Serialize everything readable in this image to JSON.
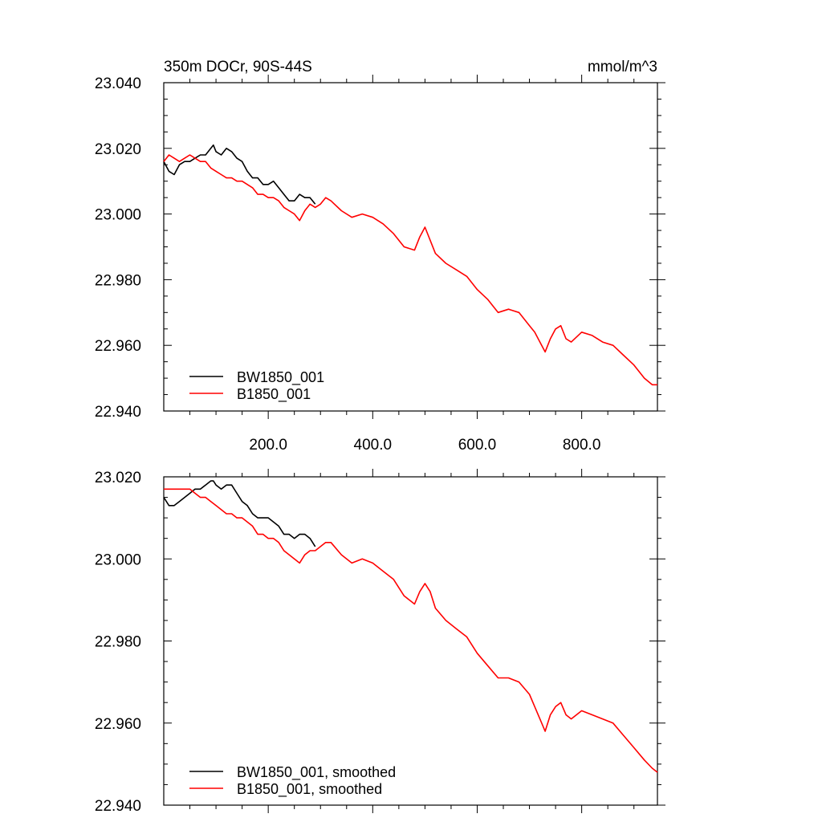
{
  "chart_data": [
    {
      "type": "line",
      "title_left": "350m DOCr, 90S-44S",
      "title_right": "mmol/m^3",
      "xlim": [
        0,
        945
      ],
      "ylim": [
        22.94,
        23.04
      ],
      "yticks": [
        "22.940",
        "22.960",
        "22.980",
        "23.000",
        "23.020",
        "23.040"
      ],
      "xticks": [
        "200.0",
        "400.0",
        "600.0",
        "800.0"
      ],
      "legend_position": "bottom-left",
      "series": [
        {
          "name": "BW1850_001",
          "color": "#000000",
          "x": [
            0,
            10,
            20,
            30,
            40,
            50,
            60,
            70,
            80,
            90,
            95,
            100,
            110,
            120,
            130,
            140,
            150,
            160,
            170,
            180,
            190,
            200,
            210,
            220,
            230,
            240,
            250,
            260,
            270,
            280,
            290
          ],
          "y": [
            23.016,
            23.013,
            23.012,
            23.015,
            23.016,
            23.016,
            23.017,
            23.018,
            23.018,
            23.02,
            23.021,
            23.019,
            23.018,
            23.02,
            23.019,
            23.017,
            23.016,
            23.013,
            23.011,
            23.011,
            23.009,
            23.009,
            23.01,
            23.008,
            23.006,
            23.004,
            23.004,
            23.006,
            23.005,
            23.005,
            23.003
          ]
        },
        {
          "name": "B1850_001",
          "color": "#ff0000",
          "x": [
            0,
            10,
            20,
            30,
            40,
            50,
            60,
            70,
            80,
            90,
            100,
            110,
            120,
            130,
            140,
            150,
            160,
            170,
            180,
            190,
            200,
            210,
            220,
            230,
            240,
            250,
            260,
            270,
            280,
            290,
            300,
            310,
            320,
            340,
            360,
            380,
            400,
            420,
            440,
            460,
            480,
            490,
            500,
            510,
            520,
            540,
            560,
            580,
            600,
            620,
            640,
            660,
            680,
            700,
            710,
            720,
            730,
            740,
            750,
            760,
            770,
            780,
            800,
            820,
            840,
            860,
            880,
            900,
            920,
            935,
            945
          ],
          "y": [
            23.016,
            23.018,
            23.017,
            23.016,
            23.017,
            23.018,
            23.017,
            23.016,
            23.016,
            23.014,
            23.013,
            23.012,
            23.011,
            23.011,
            23.01,
            23.01,
            23.009,
            23.008,
            23.006,
            23.006,
            23.005,
            23.005,
            23.004,
            23.002,
            23.001,
            23.0,
            22.998,
            23.001,
            23.003,
            23.002,
            23.003,
            23.005,
            23.004,
            23.001,
            22.999,
            23.0,
            22.999,
            22.997,
            22.994,
            22.99,
            22.989,
            22.993,
            22.996,
            22.992,
            22.988,
            22.985,
            22.983,
            22.981,
            22.977,
            22.974,
            22.97,
            22.971,
            22.97,
            22.966,
            22.964,
            22.961,
            22.958,
            22.962,
            22.965,
            22.966,
            22.962,
            22.961,
            22.964,
            22.963,
            22.961,
            22.96,
            22.957,
            22.954,
            22.95,
            22.948,
            22.948
          ]
        }
      ]
    },
    {
      "type": "line",
      "xlim": [
        0,
        945
      ],
      "ylim": [
        22.94,
        23.02
      ],
      "yticks": [
        "22.940",
        "22.960",
        "22.980",
        "23.000",
        "23.020"
      ],
      "legend_position": "bottom-left",
      "series": [
        {
          "name": "BW1850_001, smoothed",
          "color": "#000000",
          "x": [
            0,
            10,
            20,
            30,
            40,
            50,
            60,
            70,
            80,
            90,
            95,
            100,
            110,
            120,
            130,
            140,
            150,
            160,
            170,
            180,
            190,
            200,
            210,
            220,
            230,
            240,
            250,
            260,
            270,
            280,
            290
          ],
          "y": [
            23.015,
            23.013,
            23.013,
            23.014,
            23.015,
            23.016,
            23.017,
            23.017,
            23.018,
            23.019,
            23.019,
            23.018,
            23.017,
            23.018,
            23.018,
            23.016,
            23.014,
            23.013,
            23.011,
            23.01,
            23.01,
            23.01,
            23.009,
            23.008,
            23.006,
            23.006,
            23.005,
            23.006,
            23.006,
            23.005,
            23.003
          ]
        },
        {
          "name": "B1850_001, smoothed",
          "color": "#ff0000",
          "x": [
            0,
            10,
            20,
            30,
            40,
            50,
            60,
            70,
            80,
            90,
            100,
            110,
            120,
            130,
            140,
            150,
            160,
            170,
            180,
            190,
            200,
            210,
            220,
            230,
            240,
            250,
            260,
            270,
            280,
            290,
            300,
            310,
            320,
            340,
            360,
            380,
            400,
            420,
            440,
            460,
            480,
            490,
            500,
            510,
            520,
            540,
            560,
            580,
            600,
            620,
            640,
            660,
            680,
            700,
            710,
            720,
            730,
            740,
            750,
            760,
            770,
            780,
            800,
            820,
            840,
            860,
            880,
            900,
            920,
            935,
            945
          ],
          "y": [
            23.017,
            23.017,
            23.017,
            23.017,
            23.017,
            23.017,
            23.016,
            23.015,
            23.015,
            23.014,
            23.013,
            23.012,
            23.011,
            23.011,
            23.01,
            23.01,
            23.009,
            23.008,
            23.006,
            23.006,
            23.005,
            23.005,
            23.004,
            23.002,
            23.001,
            23.0,
            22.999,
            23.001,
            23.002,
            23.002,
            23.003,
            23.004,
            23.004,
            23.001,
            22.999,
            23.0,
            22.999,
            22.997,
            22.995,
            22.991,
            22.989,
            22.992,
            22.994,
            22.992,
            22.988,
            22.985,
            22.983,
            22.981,
            22.977,
            22.974,
            22.971,
            22.971,
            22.97,
            22.967,
            22.964,
            22.961,
            22.958,
            22.962,
            22.964,
            22.965,
            22.962,
            22.961,
            22.963,
            22.962,
            22.961,
            22.96,
            22.957,
            22.954,
            22.951,
            22.949,
            22.948
          ]
        }
      ]
    }
  ]
}
